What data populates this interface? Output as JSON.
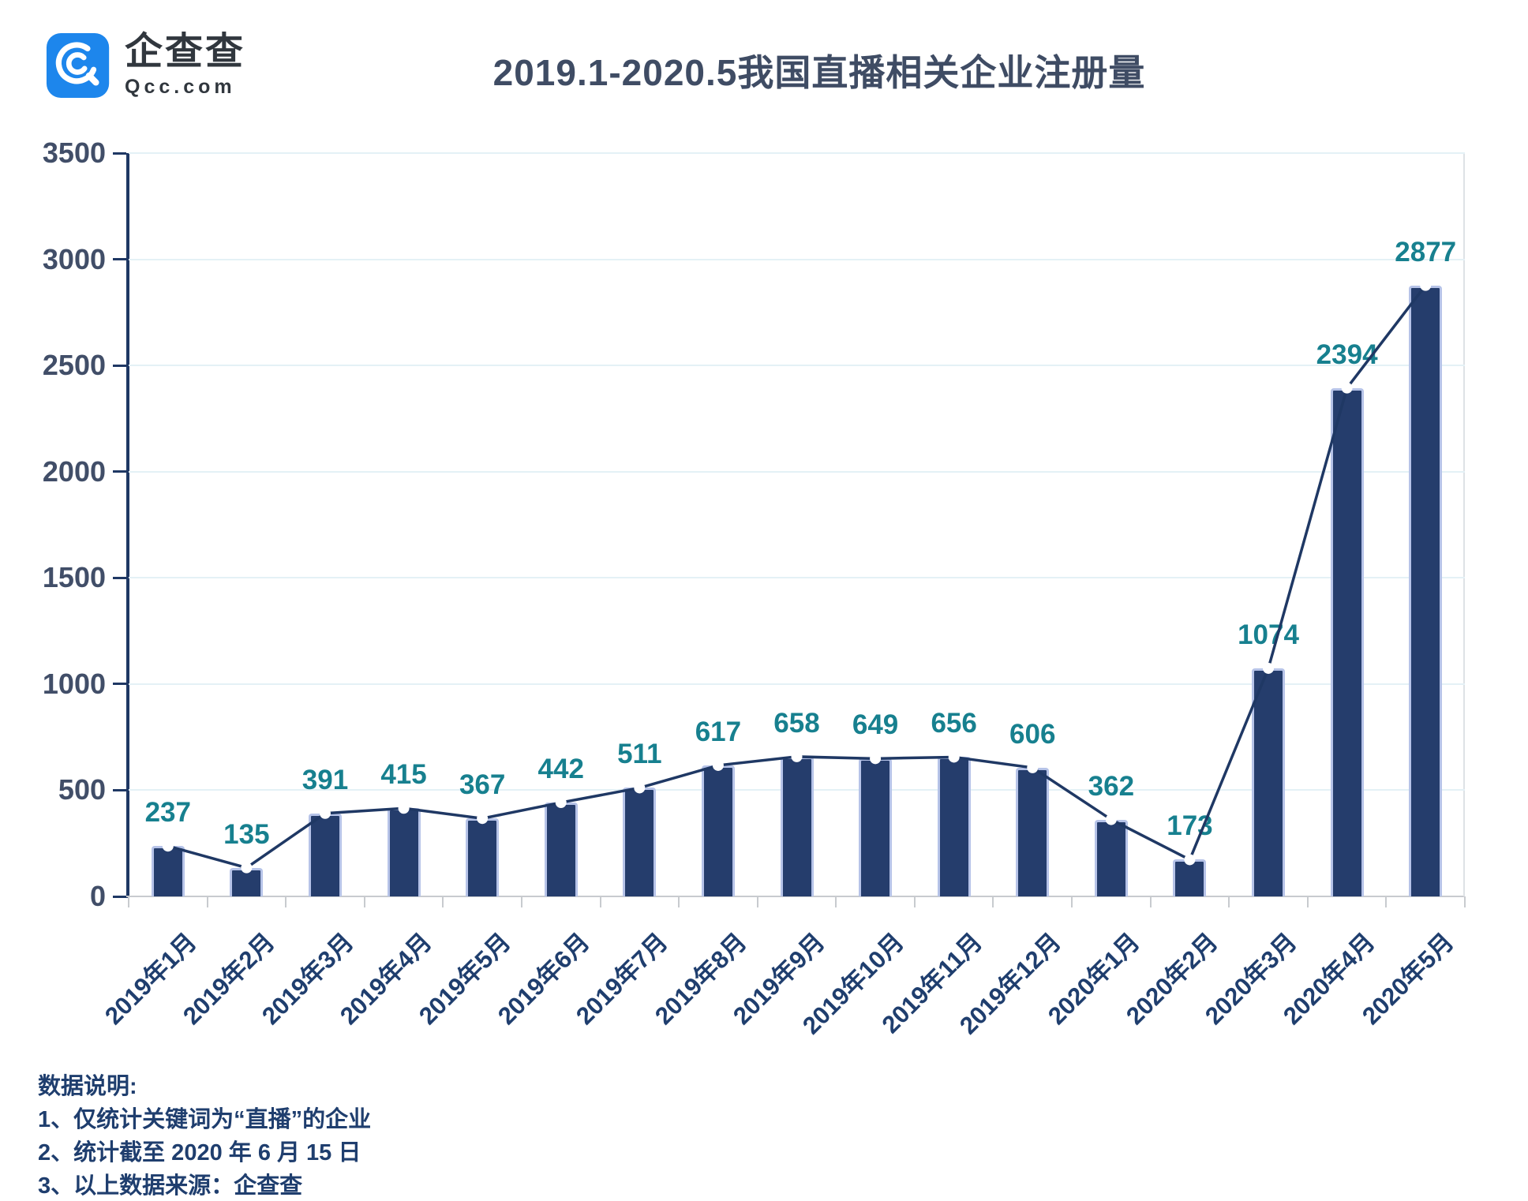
{
  "brand": {
    "name_cn": "企查查",
    "domain": "Qcc.com",
    "brand_color": "#1D86EC",
    "icon": "magnifier-q-logo"
  },
  "title": "2019.1-2020.5我国直播相关企业注册量",
  "chart_data": {
    "type": "bar",
    "line_overlay": true,
    "title": "2019.1-2020.5我国直播相关企业注册量",
    "categories": [
      "2019年1月",
      "2019年2月",
      "2019年3月",
      "2019年4月",
      "2019年5月",
      "2019年6月",
      "2019年7月",
      "2019年8月",
      "2019年9月",
      "2019年10月",
      "2019年11月",
      "2019年12月",
      "2020年1月",
      "2020年2月",
      "2020年3月",
      "2020年4月",
      "2020年5月"
    ],
    "values": [
      237,
      135,
      391,
      415,
      367,
      442,
      511,
      617,
      658,
      649,
      656,
      606,
      362,
      173,
      1074,
      2394,
      2877
    ],
    "xlabel": "",
    "ylabel": "",
    "ylim": [
      0,
      3500
    ],
    "yticks": [
      0,
      500,
      1000,
      1500,
      2000,
      2500,
      3000,
      3500
    ],
    "grid": "horizontal",
    "legend": "none",
    "colors": {
      "bar_fill": "#253D6C",
      "bar_border": "#B6C3E8",
      "line": "#1F3864",
      "marker": "#FFFFFF",
      "value_label": "#17808F",
      "axis_dark": "#1F3864",
      "axis_light": "#C8CBCF",
      "grid": "#E4F1F6",
      "y_label_text": "#414E68",
      "x_label_text": "#1F3E6E"
    }
  },
  "notes": {
    "heading": "数据说明:",
    "items": [
      "1、仅统计关键词为“直播”的企业",
      "2、统计截至 2020 年 6 月 15 日",
      "3、以上数据来源：企查查"
    ]
  }
}
